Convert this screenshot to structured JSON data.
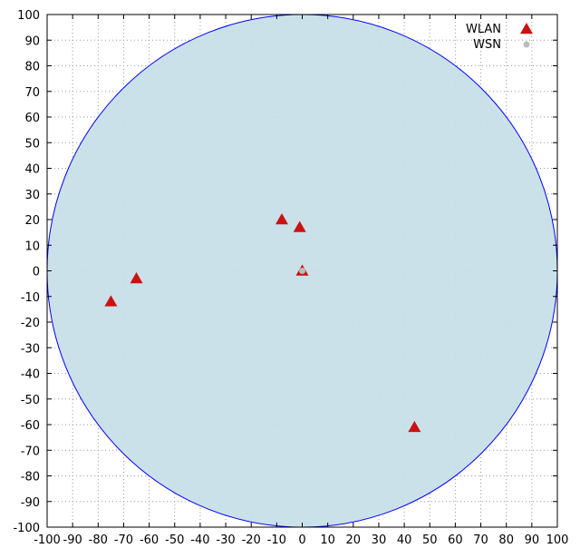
{
  "chart_data": {
    "type": "scatter",
    "xlim": [
      -100,
      100
    ],
    "ylim": [
      -100,
      100
    ],
    "x_ticks": [
      -100,
      -90,
      -80,
      -70,
      -60,
      -50,
      -40,
      -30,
      -20,
      -10,
      0,
      10,
      20,
      30,
      40,
      50,
      60,
      70,
      80,
      90,
      100
    ],
    "y_ticks": [
      100,
      90,
      80,
      70,
      60,
      50,
      40,
      30,
      20,
      10,
      0,
      -10,
      -20,
      -30,
      -40,
      -50,
      -60,
      -70,
      -80,
      -90,
      -100
    ],
    "grid": "dotted",
    "legend_position": "top-right",
    "region": {
      "shape": "circle",
      "center": [
        0,
        0
      ],
      "radius": 100,
      "fill": "#c8dfe8",
      "stroke": "#0000ff"
    },
    "series": [
      {
        "name": "WLAN",
        "marker": "triangle",
        "color": "#cc1111",
        "points": [
          {
            "x": -75,
            "y": -12
          },
          {
            "x": -65,
            "y": -3
          },
          {
            "x": -8,
            "y": 20
          },
          {
            "x": -1,
            "y": 17
          },
          {
            "x": 0,
            "y": 0
          },
          {
            "x": 44,
            "y": -61
          }
        ]
      },
      {
        "name": "WSN",
        "marker": "circle",
        "color": "#bbbbbb",
        "points": [
          {
            "x": 0,
            "y": 0
          }
        ]
      }
    ]
  }
}
